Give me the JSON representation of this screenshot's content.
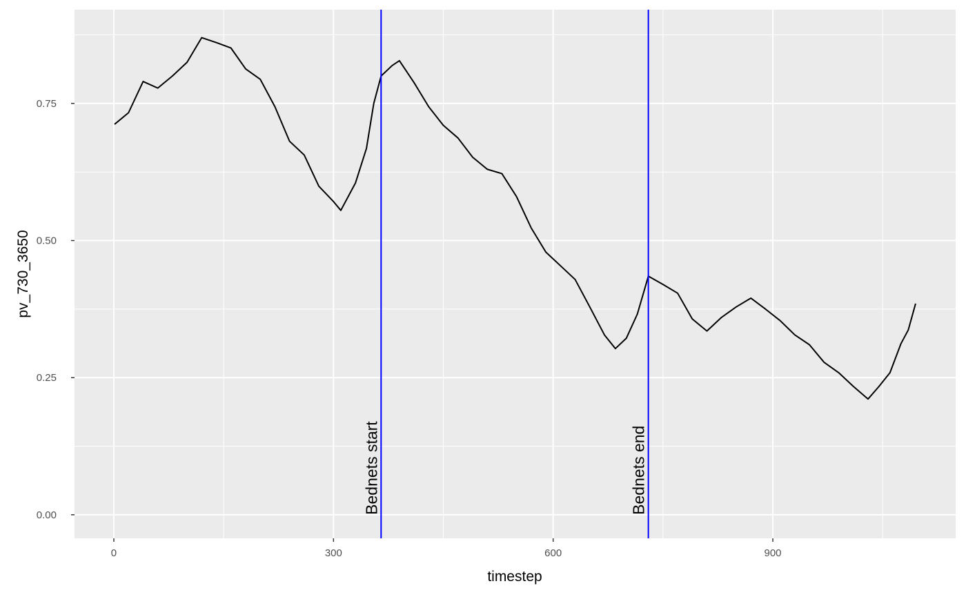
{
  "chart_data": {
    "type": "line",
    "xlabel": "timestep",
    "ylabel": "pv_730_3650",
    "color": "#000000",
    "x": [
      1,
      20,
      40,
      60,
      80,
      100,
      120,
      140,
      160,
      180,
      200,
      220,
      240,
      260,
      280,
      300,
      310,
      330,
      345,
      355,
      365,
      380,
      390,
      410,
      430,
      450,
      470,
      490,
      510,
      530,
      550,
      570,
      590,
      610,
      630,
      650,
      670,
      685,
      700,
      715,
      730,
      750,
      770,
      790,
      810,
      830,
      850,
      870,
      890,
      910,
      930,
      950,
      970,
      990,
      1010,
      1030,
      1045,
      1060,
      1075,
      1085,
      1095
    ],
    "values": [
      0.712,
      0.733,
      0.79,
      0.778,
      0.8,
      0.825,
      0.87,
      0.861,
      0.851,
      0.813,
      0.794,
      0.744,
      0.681,
      0.656,
      0.599,
      0.571,
      0.555,
      0.605,
      0.668,
      0.75,
      0.8,
      0.819,
      0.828,
      0.788,
      0.744,
      0.71,
      0.687,
      0.652,
      0.63,
      0.622,
      0.58,
      0.523,
      0.479,
      0.454,
      0.429,
      0.379,
      0.328,
      0.303,
      0.322,
      0.366,
      0.435,
      0.42,
      0.404,
      0.357,
      0.335,
      0.36,
      0.379,
      0.395,
      0.375,
      0.354,
      0.328,
      0.31,
      0.278,
      0.259,
      0.234,
      0.211,
      0.234,
      0.259,
      0.312,
      0.337,
      0.385
    ],
    "xlim": [
      -53.7,
      1149.7
    ],
    "ylim": [
      -0.043,
      0.921
    ],
    "xticks": [
      0,
      300,
      600,
      900
    ],
    "yticks": [
      {
        "value": 0,
        "label": "0.00"
      },
      {
        "value": 0.25,
        "label": "0.25"
      },
      {
        "value": 0.5,
        "label": "0.50"
      },
      {
        "value": 0.75,
        "label": "0.75"
      }
    ],
    "x_minor_ticks": [
      150,
      450,
      750,
      1050
    ],
    "y_minor_ticks": [
      0.125,
      0.375,
      0.625,
      0.875
    ],
    "grid": true,
    "vlines": [
      {
        "x": 365,
        "label": "Bednets start",
        "color": "#0000ff"
      },
      {
        "x": 730,
        "label": "Bednets end",
        "color": "#0000ff"
      }
    ]
  }
}
